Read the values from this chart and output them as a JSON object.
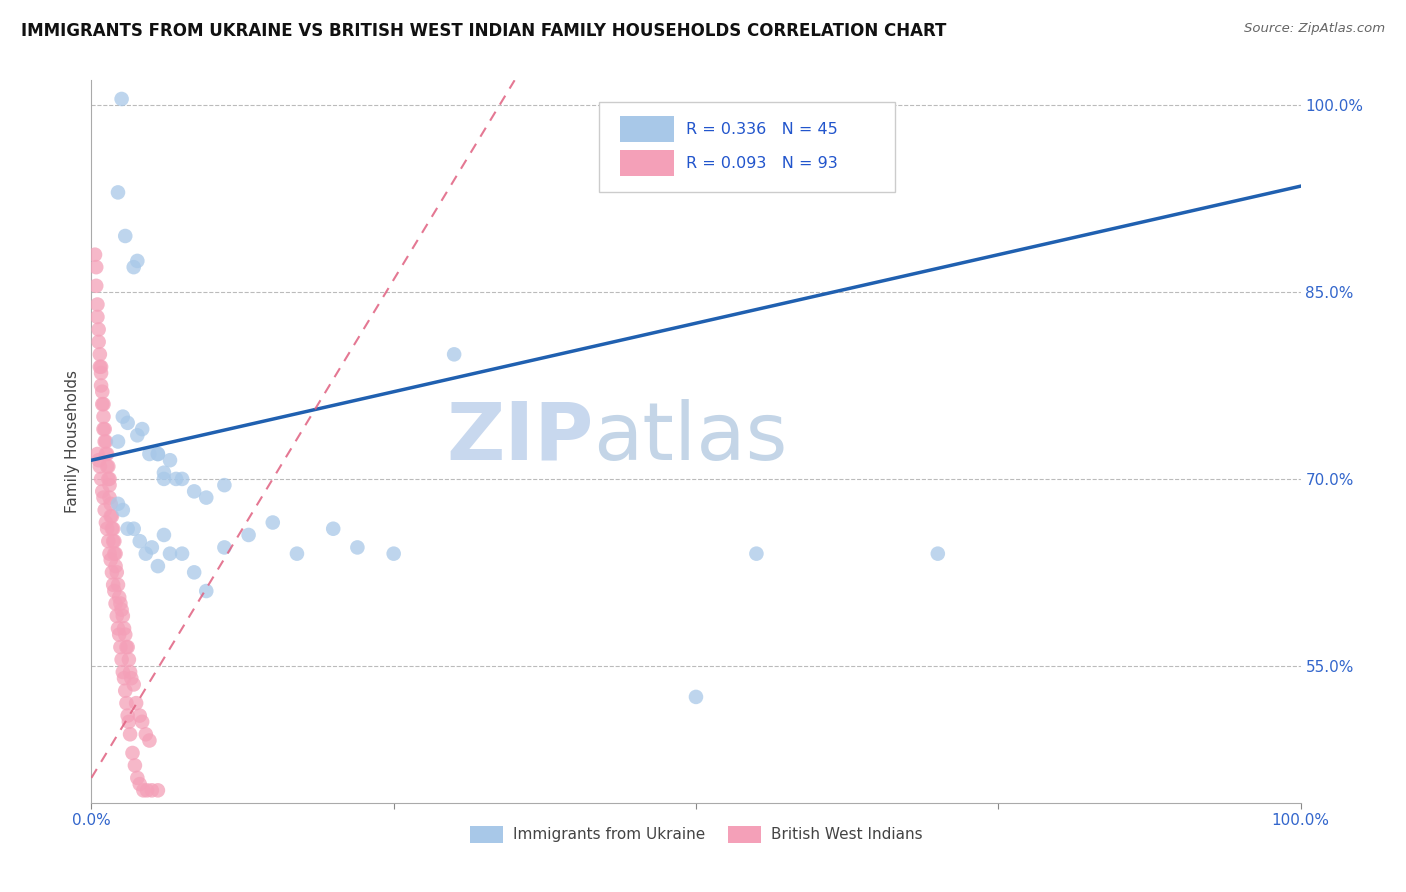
{
  "title": "IMMIGRANTS FROM UKRAINE VS BRITISH WEST INDIAN FAMILY HOUSEHOLDS CORRELATION CHART",
  "source": "Source: ZipAtlas.com",
  "ylabel": "Family Households",
  "xlim": [
    0.0,
    1.0
  ],
  "ylim": [
    0.44,
    1.02
  ],
  "yticks": [
    0.55,
    0.7,
    0.85,
    1.0
  ],
  "xticks": [
    0.0,
    0.25,
    0.5,
    0.75,
    1.0
  ],
  "ukraine_R": 0.336,
  "ukraine_N": 45,
  "bwi_R": 0.093,
  "bwi_N": 93,
  "ukraine_color": "#a8c8e8",
  "bwi_color": "#f4a0b8",
  "ukraine_line_color": "#2060b0",
  "bwi_line_color": "#e06080",
  "ukraine_line_x0": 0.0,
  "ukraine_line_y0": 0.715,
  "ukraine_line_x1": 1.0,
  "ukraine_line_y1": 0.935,
  "bwi_line_x0": 0.0,
  "bwi_line_y0": 0.46,
  "bwi_line_x1": 0.35,
  "bwi_line_y1": 1.02,
  "ukraine_x": [
    0.025,
    0.022,
    0.028,
    0.035,
    0.038,
    0.022,
    0.026,
    0.03,
    0.038,
    0.042,
    0.048,
    0.055,
    0.06,
    0.065,
    0.07,
    0.055,
    0.06,
    0.075,
    0.085,
    0.095,
    0.11,
    0.022,
    0.026,
    0.03,
    0.035,
    0.04,
    0.045,
    0.05,
    0.055,
    0.06,
    0.065,
    0.075,
    0.085,
    0.095,
    0.11,
    0.13,
    0.15,
    0.17,
    0.2,
    0.22,
    0.25,
    0.3,
    0.5,
    0.55,
    0.7
  ],
  "ukraine_y": [
    1.005,
    0.93,
    0.895,
    0.87,
    0.875,
    0.73,
    0.75,
    0.745,
    0.735,
    0.74,
    0.72,
    0.72,
    0.7,
    0.715,
    0.7,
    0.72,
    0.705,
    0.7,
    0.69,
    0.685,
    0.695,
    0.68,
    0.675,
    0.66,
    0.66,
    0.65,
    0.64,
    0.645,
    0.63,
    0.655,
    0.64,
    0.64,
    0.625,
    0.61,
    0.645,
    0.655,
    0.665,
    0.64,
    0.66,
    0.645,
    0.64,
    0.8,
    0.525,
    0.64,
    0.64
  ],
  "bwi_x": [
    0.003,
    0.004,
    0.004,
    0.005,
    0.005,
    0.006,
    0.006,
    0.007,
    0.007,
    0.008,
    0.008,
    0.008,
    0.009,
    0.009,
    0.01,
    0.01,
    0.01,
    0.011,
    0.011,
    0.012,
    0.012,
    0.013,
    0.013,
    0.014,
    0.014,
    0.015,
    0.015,
    0.015,
    0.016,
    0.016,
    0.017,
    0.017,
    0.018,
    0.018,
    0.019,
    0.019,
    0.02,
    0.02,
    0.021,
    0.022,
    0.023,
    0.024,
    0.025,
    0.026,
    0.027,
    0.028,
    0.029,
    0.03,
    0.031,
    0.032,
    0.033,
    0.035,
    0.037,
    0.04,
    0.042,
    0.045,
    0.048,
    0.005,
    0.006,
    0.007,
    0.008,
    0.009,
    0.01,
    0.011,
    0.012,
    0.013,
    0.014,
    0.015,
    0.016,
    0.017,
    0.018,
    0.019,
    0.02,
    0.021,
    0.022,
    0.023,
    0.024,
    0.025,
    0.026,
    0.027,
    0.028,
    0.029,
    0.03,
    0.031,
    0.032,
    0.034,
    0.036,
    0.038,
    0.04,
    0.043,
    0.046,
    0.05,
    0.055
  ],
  "bwi_y": [
    0.88,
    0.87,
    0.855,
    0.84,
    0.83,
    0.82,
    0.81,
    0.8,
    0.79,
    0.79,
    0.785,
    0.775,
    0.77,
    0.76,
    0.76,
    0.75,
    0.74,
    0.74,
    0.73,
    0.73,
    0.72,
    0.72,
    0.71,
    0.71,
    0.7,
    0.7,
    0.695,
    0.685,
    0.68,
    0.67,
    0.67,
    0.66,
    0.66,
    0.65,
    0.65,
    0.64,
    0.64,
    0.63,
    0.625,
    0.615,
    0.605,
    0.6,
    0.595,
    0.59,
    0.58,
    0.575,
    0.565,
    0.565,
    0.555,
    0.545,
    0.54,
    0.535,
    0.52,
    0.51,
    0.505,
    0.495,
    0.49,
    0.72,
    0.715,
    0.71,
    0.7,
    0.69,
    0.685,
    0.675,
    0.665,
    0.66,
    0.65,
    0.64,
    0.635,
    0.625,
    0.615,
    0.61,
    0.6,
    0.59,
    0.58,
    0.575,
    0.565,
    0.555,
    0.545,
    0.54,
    0.53,
    0.52,
    0.51,
    0.505,
    0.495,
    0.48,
    0.47,
    0.46,
    0.455,
    0.45,
    0.45,
    0.45,
    0.45
  ]
}
